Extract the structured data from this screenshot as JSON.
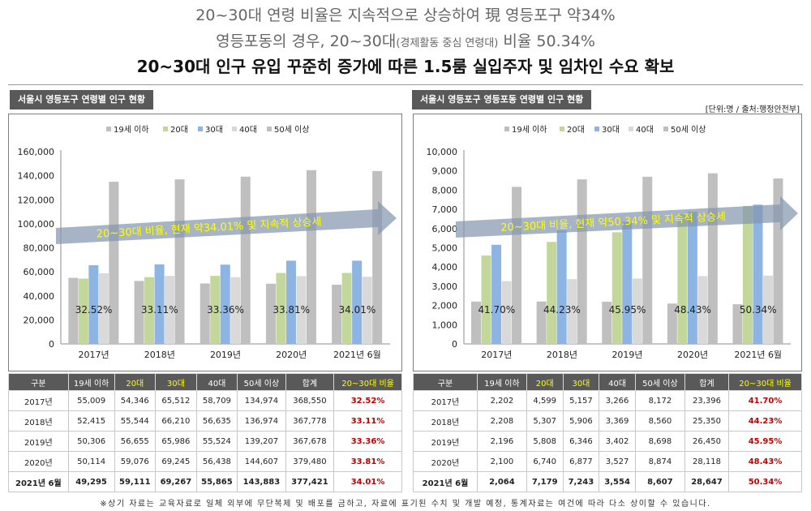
{
  "header": {
    "line1": "20~30대 연령 비율은 지속적으로 상승하여 現 영등포구 약34%",
    "line2_main": "영등포동의 경우, 20~30대",
    "line2_paren": "(경제활동 중심 연령대)",
    "line2_tail": " 비율 50.34%",
    "line3": "20~30대 인구 유입 꾸준히 증가에 따른 1.5룸 실입주자 및 임차인 수요 확보"
  },
  "unit_note": "[단위:명 / 출처:행정안전부]",
  "colors": {
    "s19": "#bfbfbf",
    "s20": "#c4d79b",
    "s30": "#8eb4e3",
    "s40": "#d9d9d9",
    "s50": "#bfbfbf",
    "arrow": "#8497b0",
    "arrow_text": "#ffff00",
    "red": "#c00000"
  },
  "table_headers": [
    "구분",
    "19세 이하",
    "20대",
    "30대",
    "40대",
    "50세 이상",
    "합계",
    "20~30대 비율"
  ],
  "footer": "※상기 자료는 교육자료로 일체 외부에 무단복제 및 배포를 금하고, 자료에 표기된 수치 및 개발 예정, 통계자료는 여건에 따라 다소 상이할 수 있습니다.",
  "chart_data": [
    {
      "type": "bar",
      "title": "서울시 영등포구 연령별 인구 현황",
      "categories": [
        "2017년",
        "2018년",
        "2019년",
        "2020년",
        "2021년 6월"
      ],
      "series": [
        {
          "name": "19세 이하",
          "values": [
            55009,
            52415,
            50306,
            50114,
            49295
          ]
        },
        {
          "name": "20대",
          "values": [
            54346,
            55544,
            56655,
            59076,
            59111
          ]
        },
        {
          "name": "30대",
          "values": [
            65512,
            66210,
            65986,
            69245,
            69267
          ]
        },
        {
          "name": "40대",
          "values": [
            58709,
            56635,
            55524,
            56438,
            55865
          ]
        },
        {
          "name": "50세 이상",
          "values": [
            134974,
            136974,
            139207,
            144607,
            143883
          ]
        }
      ],
      "totals": [
        368550,
        367778,
        367678,
        379480,
        377421
      ],
      "ratio_labels": [
        "32.52%",
        "33.11%",
        "33.36%",
        "33.81%",
        "34.01%"
      ],
      "yticks": [
        "0",
        "20,000",
        "40,000",
        "60,000",
        "80,000",
        "100,000",
        "120,000",
        "140,000",
        "160,000"
      ],
      "ylim": [
        0,
        160000
      ],
      "annotation": "20~30대 비율, 현재 약34.01% 및 지속적 상승세",
      "legend_position": "top"
    },
    {
      "type": "bar",
      "title": "서울시 영등포구 영등포동 연령별 인구 현황",
      "categories": [
        "2017년",
        "2018년",
        "2019년",
        "2020년",
        "2021년 6월"
      ],
      "series": [
        {
          "name": "19세 이하",
          "values": [
            2202,
            2208,
            2196,
            2100,
            2064
          ]
        },
        {
          "name": "20대",
          "values": [
            4599,
            5307,
            5808,
            6740,
            7179
          ]
        },
        {
          "name": "30대",
          "values": [
            5157,
            5906,
            6346,
            6877,
            7243
          ]
        },
        {
          "name": "40대",
          "values": [
            3266,
            3369,
            3402,
            3527,
            3554
          ]
        },
        {
          "name": "50세 이상",
          "values": [
            8172,
            8560,
            8698,
            8874,
            8607
          ]
        }
      ],
      "totals": [
        23396,
        25350,
        26450,
        28118,
        28647
      ],
      "ratio_labels": [
        "41.70%",
        "44.23%",
        "45.95%",
        "48.43%",
        "50.34%"
      ],
      "yticks": [
        "0",
        "1,000",
        "2,000",
        "3,000",
        "4,000",
        "5,000",
        "6,000",
        "7,000",
        "8,000",
        "9,000",
        "10,000"
      ],
      "ylim": [
        0,
        10000
      ],
      "annotation": "20~30대 비율, 현재 약50.34% 및 지속적 상승세",
      "legend_position": "top"
    }
  ]
}
